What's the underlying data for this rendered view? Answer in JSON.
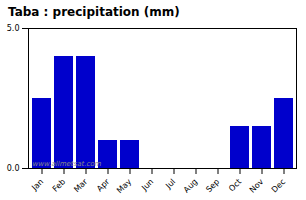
{
  "chart_data": {
    "type": "bar",
    "title": "Taba : precipitation (mm)",
    "categories": [
      "Jan",
      "Feb",
      "Mar",
      "Apr",
      "May",
      "Jun",
      "Jul",
      "Aug",
      "Sep",
      "Oct",
      "Nov",
      "Dec"
    ],
    "values": [
      2.5,
      4.0,
      4.0,
      1.0,
      1.0,
      0.0,
      0.0,
      0.0,
      0.0,
      1.5,
      1.5,
      2.5
    ],
    "color": "#0000CC",
    "ylim": [
      0,
      5
    ],
    "yticks": [
      0,
      5
    ],
    "grid": false,
    "annotation": "www.allmetsat.com"
  }
}
